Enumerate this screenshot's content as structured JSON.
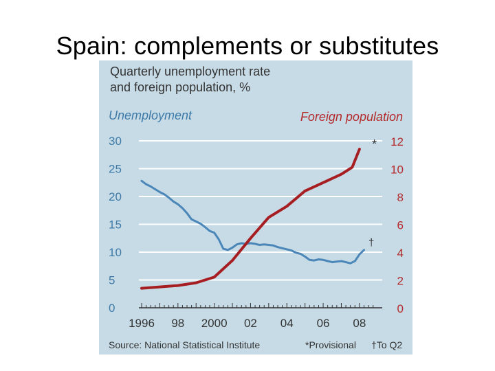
{
  "slide": {
    "title": "Spain: complements or substitutes"
  },
  "chart_data": {
    "type": "line",
    "title": "Quarterly unemployment rate and foreign population, %",
    "title_lines": [
      "Quarterly unemployment rate",
      "and foreign population, %"
    ],
    "left_axis": {
      "label": "Unemployment",
      "ticks": [
        "30",
        "25",
        "20",
        "15",
        "10",
        "5",
        "0"
      ],
      "ylim": [
        0,
        30
      ],
      "color": "#3d7aa8"
    },
    "right_axis": {
      "label": "Foreign population",
      "ticks": [
        "12",
        "10",
        "8",
        "6",
        "4",
        "2",
        "0"
      ],
      "ylim": [
        0,
        12
      ],
      "color": "#b32b2b"
    },
    "x_ticks": [
      "1996",
      "98",
      "2000",
      "02",
      "04",
      "06",
      "08"
    ],
    "xlim": [
      1996,
      2008.8
    ],
    "series": [
      {
        "name": "Unemployment",
        "axis": "left",
        "color": "#4a86b8",
        "x": [
          1996.0,
          1996.25,
          1996.5,
          1996.75,
          1997.0,
          1997.25,
          1997.5,
          1997.75,
          1998.0,
          1998.25,
          1998.5,
          1998.75,
          1999.0,
          1999.25,
          1999.5,
          1999.75,
          2000.0,
          2000.25,
          2000.5,
          2000.75,
          2001.0,
          2001.25,
          2001.5,
          2001.75,
          2002.0,
          2002.25,
          2002.5,
          2002.75,
          2003.0,
          2003.25,
          2003.5,
          2003.75,
          2004.0,
          2004.25,
          2004.5,
          2004.75,
          2005.0,
          2005.25,
          2005.5,
          2005.75,
          2006.0,
          2006.25,
          2006.5,
          2006.75,
          2007.0,
          2007.25,
          2007.5,
          2007.75,
          2008.0,
          2008.25
        ],
        "values": [
          22.8,
          22.2,
          21.8,
          21.3,
          20.8,
          20.4,
          19.8,
          19.1,
          18.6,
          17.9,
          17.0,
          15.9,
          15.5,
          15.1,
          14.5,
          13.8,
          13.5,
          12.3,
          10.6,
          10.4,
          10.8,
          11.4,
          11.6,
          11.5,
          11.6,
          11.5,
          11.3,
          11.4,
          11.3,
          11.2,
          10.9,
          10.7,
          10.5,
          10.3,
          9.9,
          9.7,
          9.2,
          8.6,
          8.5,
          8.7,
          8.6,
          8.4,
          8.2,
          8.3,
          8.4,
          8.2,
          8.0,
          8.4,
          9.6,
          10.4
        ]
      },
      {
        "name": "Foreign population",
        "axis": "right",
        "color": "#a61e22",
        "x": [
          1996.0,
          1997.0,
          1998.0,
          1999.0,
          2000.0,
          2001.0,
          2002.0,
          2003.0,
          2004.0,
          2005.0,
          2006.0,
          2007.0,
          2007.6,
          2008.0
        ],
        "values": [
          1.4,
          1.5,
          1.6,
          1.8,
          2.2,
          3.4,
          5.0,
          6.5,
          7.3,
          8.4,
          9.0,
          9.6,
          10.1,
          11.4
        ]
      }
    ],
    "annotations": {
      "provisional_mark": "*",
      "q2_mark": "†"
    },
    "source": "Source: National Statistical Institute",
    "note_provisional": "*Provisional",
    "note_q2": "†To Q2"
  }
}
